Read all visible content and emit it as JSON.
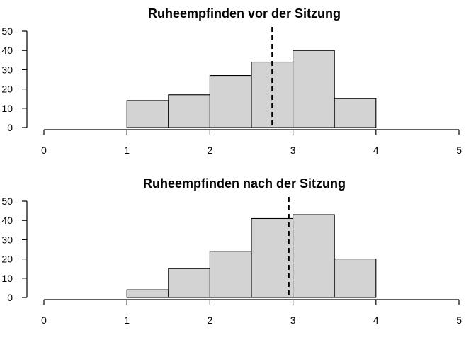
{
  "chart_data": [
    {
      "type": "bar",
      "title": "Ruheempfinden vor der Sitzung",
      "xlabel": "",
      "ylabel": "",
      "bins": [
        [
          1.0,
          1.5
        ],
        [
          1.5,
          2.0
        ],
        [
          2.0,
          2.5
        ],
        [
          2.5,
          3.0
        ],
        [
          3.0,
          3.5
        ],
        [
          3.5,
          4.0
        ]
      ],
      "values": [
        14,
        17,
        27,
        34,
        40,
        15
      ],
      "xlim": [
        0,
        5
      ],
      "xticks": [
        "0",
        "1",
        "2",
        "3",
        "4",
        "5"
      ],
      "ylim": [
        0,
        50
      ],
      "yticks": [
        "0",
        "10",
        "20",
        "30",
        "40",
        "50"
      ],
      "mean_line": 2.75,
      "grid": false
    },
    {
      "type": "bar",
      "title": "Ruheempfinden nach der Sitzung",
      "xlabel": "",
      "ylabel": "",
      "bins": [
        [
          1.0,
          1.5
        ],
        [
          1.5,
          2.0
        ],
        [
          2.0,
          2.5
        ],
        [
          2.5,
          3.0
        ],
        [
          3.0,
          3.5
        ],
        [
          3.5,
          4.0
        ]
      ],
      "values": [
        4,
        15,
        24,
        41,
        43,
        20
      ],
      "xlim": [
        0,
        5
      ],
      "xticks": [
        "0",
        "1",
        "2",
        "3",
        "4",
        "5"
      ],
      "ylim": [
        0,
        50
      ],
      "yticks": [
        "0",
        "10",
        "20",
        "30",
        "40",
        "50"
      ],
      "mean_line": 2.95,
      "grid": false
    }
  ]
}
